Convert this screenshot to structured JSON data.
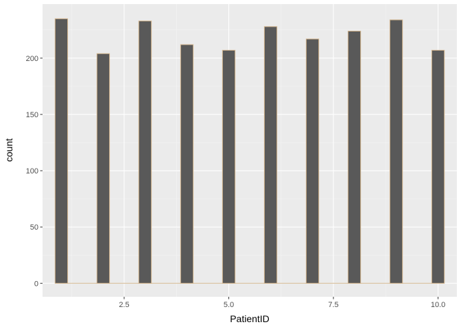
{
  "chart_data": {
    "type": "bar",
    "title": "",
    "xlabel": "PatientID",
    "ylabel": "count",
    "xlim": [
      0.55,
      10.45
    ],
    "ylim": [
      -12,
      248
    ],
    "x_ticks": [
      2.5,
      5.0,
      7.5,
      10.0
    ],
    "x_tick_labels": [
      "2.5",
      "5.0",
      "7.5",
      "10.0"
    ],
    "y_ticks": [
      0,
      50,
      100,
      150,
      200
    ],
    "y_tick_labels": [
      "0",
      "50",
      "100",
      "150",
      "200"
    ],
    "bin_width": 0.3,
    "x": [
      1,
      2,
      3,
      4,
      5,
      6,
      7,
      8,
      9,
      10
    ],
    "values": [
      235,
      204,
      233,
      212,
      207,
      228,
      217,
      224,
      234,
      207
    ],
    "grid": true,
    "colors": {
      "panel_background": "#ebebeb",
      "grid_major": "#ffffff",
      "grid_minor": "#f5f5f5",
      "bar_fill": "#595959",
      "bar_outline": "#d2b48c",
      "tick": "#333333"
    }
  }
}
